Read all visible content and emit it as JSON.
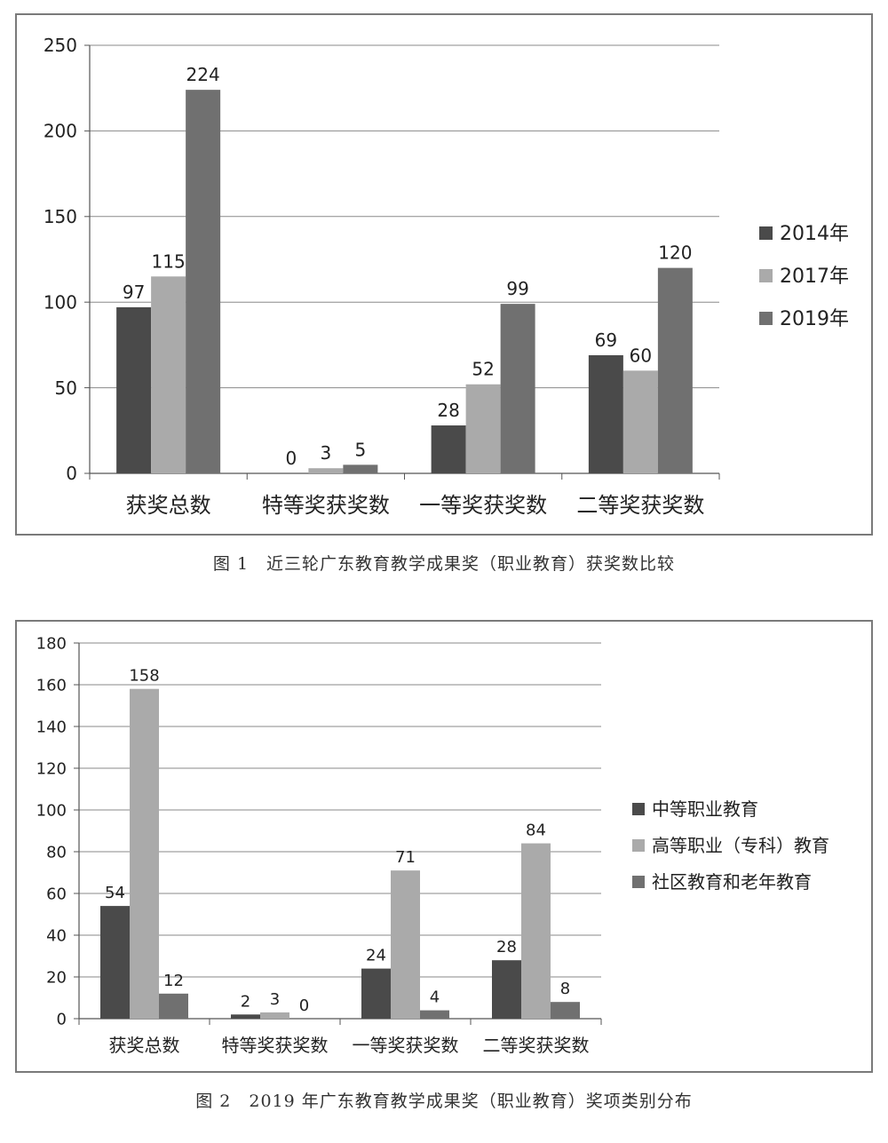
{
  "chart_data": [
    {
      "type": "bar",
      "categories": [
        "获奖总数",
        "特等奖获奖数",
        "一等奖获奖数",
        "二等奖获奖数"
      ],
      "series": [
        {
          "name": "2014年",
          "values": [
            97,
            0,
            28,
            69
          ],
          "color": "#4a4a4a"
        },
        {
          "name": "2017年",
          "values": [
            115,
            3,
            52,
            60
          ],
          "color": "#aaaaaa"
        },
        {
          "name": "2019年",
          "values": [
            224,
            5,
            99,
            120
          ],
          "color": "#707070"
        }
      ],
      "ylim": [
        0,
        250
      ],
      "yticks": [
        0,
        50,
        100,
        150,
        200,
        250
      ],
      "grid": true,
      "legend": "right",
      "caption": "图 1　近三轮广东教育教学成果奖（职业教育）获奖数比较"
    },
    {
      "type": "bar",
      "categories": [
        "获奖总数",
        "特等奖获奖数",
        "一等奖获奖数",
        "二等奖获奖数"
      ],
      "series": [
        {
          "name": "中等职业教育",
          "values": [
            54,
            2,
            24,
            28
          ],
          "color": "#4a4a4a"
        },
        {
          "name": "高等职业（专科）教育",
          "values": [
            158,
            3,
            71,
            84
          ],
          "color": "#aaaaaa"
        },
        {
          "name": "社区教育和老年教育",
          "values": [
            12,
            0,
            4,
            8
          ],
          "color": "#707070"
        }
      ],
      "ylim": [
        0,
        180
      ],
      "yticks": [
        0,
        20,
        40,
        60,
        80,
        100,
        120,
        140,
        160,
        180
      ],
      "grid": true,
      "legend": "right",
      "caption": "图 2　2019 年广东教育教学成果奖（职业教育）奖项类别分布"
    }
  ]
}
